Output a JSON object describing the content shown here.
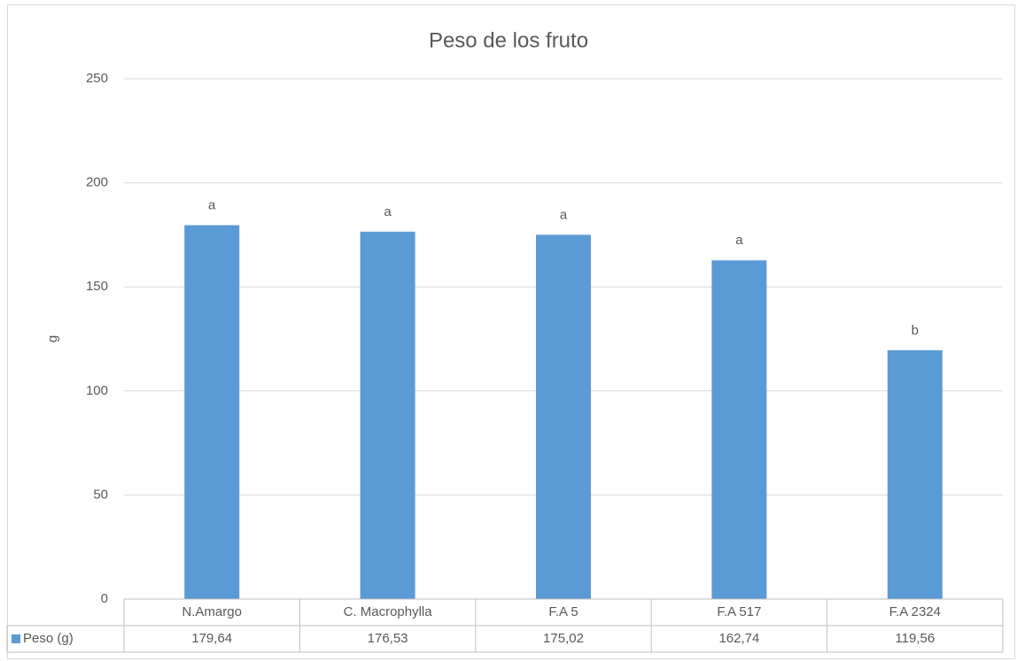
{
  "chart_data": {
    "type": "bar",
    "title": "Peso de los fruto",
    "y_label": "g",
    "categories": [
      "N.Amargo",
      "C. Macrophylla",
      "F.A 5",
      "F.A 517",
      "F.A 2324"
    ],
    "series": [
      {
        "name": "Peso (g)",
        "color": "#5b9bd5",
        "values": [
          179.64,
          176.53,
          175.02,
          162.74,
          119.56
        ],
        "value_labels": [
          "179,64",
          "176,53",
          "175,02",
          "162,74",
          "119,56"
        ]
      }
    ],
    "annotations": [
      "a",
      "a",
      "a",
      "a",
      "b"
    ],
    "ylim": [
      0,
      250
    ],
    "yticks": [
      0,
      50,
      100,
      150,
      200,
      250
    ],
    "grid": true,
    "data_table": true
  }
}
